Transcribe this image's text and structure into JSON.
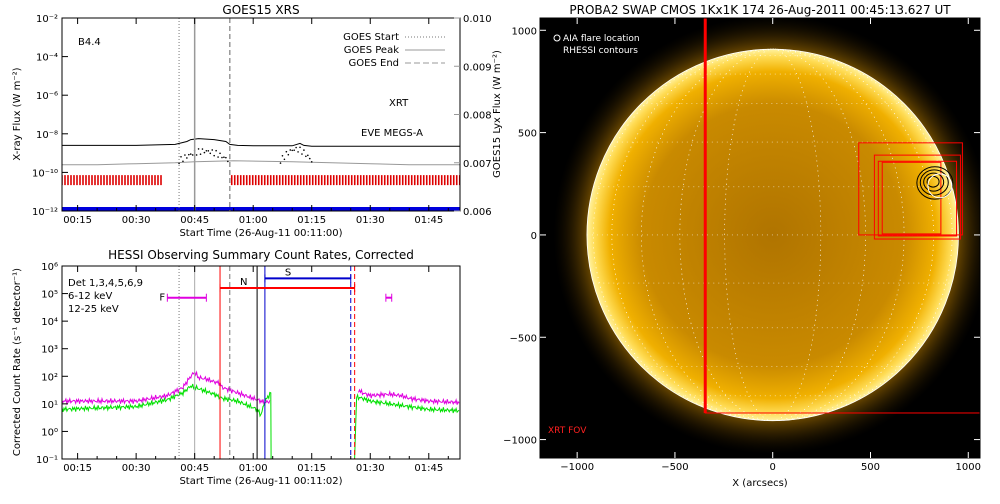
{
  "chart_data": [
    {
      "id": "goes",
      "type": "line",
      "title": "GOES15 XRS",
      "xlabel": "Start Time (26-Aug-11 00:11:00)",
      "ylabel": "X-ray Flux (W m⁻²)",
      "y2label": "GOES15 Lyx Flux (W m⁻²)",
      "x_tick_labels": [
        "00:15",
        "00:30",
        "00:45",
        "01:00",
        "01:15",
        "01:30",
        "01:45"
      ],
      "x_tick_minutes": [
        15,
        30,
        45,
        60,
        75,
        90,
        105
      ],
      "xlim_minutes": [
        11,
        113
      ],
      "ylim_log10": [
        -12,
        -2
      ],
      "y_tick_exponents": [
        -12,
        -10,
        -8,
        -6,
        -4,
        -2
      ],
      "y2lim": [
        0.006,
        0.01
      ],
      "y2_ticks": [
        "0.006",
        "0.007",
        "0.008",
        "0.009",
        "0.010"
      ],
      "class_label": "B4.4",
      "legend": {
        "position": "top-right",
        "entries": [
          {
            "label": "GOES Start",
            "style": "dotted"
          },
          {
            "label": "GOES Peak",
            "style": "solid"
          },
          {
            "label": "GOES End",
            "style": "dashed"
          }
        ]
      },
      "event_lines_minutes": {
        "start": 41,
        "peak": 45,
        "end": 54
      },
      "annotations": [
        {
          "text": "XRT",
          "color": "#cc0000"
        },
        {
          "text": "EVE MEGS-A",
          "color": "#0000cc"
        }
      ],
      "series": [
        {
          "color": "#000000",
          "x": [
            11,
            30,
            40,
            43,
            44,
            46,
            50,
            53,
            54,
            56,
            60,
            70,
            72,
            73,
            75,
            80,
            90,
            100,
            113
          ],
          "y_log10": [
            -8.6,
            -8.6,
            -8.55,
            -8.4,
            -8.3,
            -8.25,
            -8.3,
            -8.4,
            -8.55,
            -8.6,
            -8.62,
            -8.62,
            -8.5,
            -8.6,
            -8.65,
            -8.65,
            -8.65,
            -8.65,
            -8.65
          ]
        },
        {
          "color": "#999999",
          "x": [
            11,
            20,
            30,
            40,
            45,
            55,
            70,
            80,
            90,
            100,
            113
          ],
          "y_log10": [
            -9.6,
            -9.6,
            -9.55,
            -9.5,
            -9.45,
            -9.4,
            -9.45,
            -9.5,
            -9.55,
            -9.6,
            -9.6
          ]
        }
      ],
      "dotted_bursts": [
        {
          "x": [
            41,
            54
          ],
          "y_log10": [
            -9.4,
            -8.9
          ]
        },
        {
          "x": [
            67,
            75
          ],
          "y_log10": [
            -9.4,
            -8.8
          ]
        }
      ],
      "xrt_intervals_minutes": [
        [
          11,
          36.5
        ],
        [
          54.5,
          113
        ]
      ],
      "xrt_y_log10": -10.4,
      "eve_y_log10": -12
    },
    {
      "id": "hessi",
      "type": "line",
      "title": "HESSI Observing Summary Count Rates, Corrected",
      "xlabel": "Start Time (26-Aug-11 00:11:02)",
      "ylabel": "Corrected Count Rate (s⁻¹ detector⁻¹)",
      "x_tick_labels": [
        "00:15",
        "00:30",
        "00:45",
        "01:00",
        "01:15",
        "01:30",
        "01:45"
      ],
      "x_tick_minutes": [
        15,
        30,
        45,
        60,
        75,
        90,
        105
      ],
      "xlim_minutes": [
        11,
        113
      ],
      "ylim_log10": [
        -1,
        6
      ],
      "y_tick_exponents": [
        -1,
        0,
        1,
        2,
        3,
        4,
        5,
        6
      ],
      "legend": {
        "position": "top-left",
        "entries": [
          {
            "label": "Det 1,3,4,5,6,9",
            "color": "#000000"
          },
          {
            "label": "6-12 keV",
            "color": "#e000e0"
          },
          {
            "label": "12-25 keV",
            "color": "#00e000"
          }
        ]
      },
      "series": [
        {
          "name": "6-12 keV",
          "color": "#e000e0",
          "x": [
            11,
            20,
            30,
            38,
            42,
            44,
            45,
            46,
            48,
            50,
            51.5,
            52,
            61,
            63,
            64.5,
            64.6,
            86,
            87,
            88,
            90,
            95,
            98,
            100,
            105,
            113
          ],
          "y_log10": [
            1.1,
            1.1,
            1.1,
            1.3,
            1.6,
            2.0,
            2.15,
            1.95,
            1.9,
            1.8,
            1.75,
            1.6,
            1.15,
            1.05,
            1.1,
            null,
            null,
            1.5,
            1.4,
            1.3,
            1.35,
            1.3,
            1.2,
            1.1,
            1.05
          ]
        },
        {
          "name": "12-25 keV",
          "color": "#00e000",
          "x": [
            11,
            20,
            30,
            38,
            42,
            44,
            46,
            48,
            50,
            52,
            56,
            61,
            62,
            63,
            64.5,
            64.6,
            86,
            86.5,
            88,
            90,
            95,
            100,
            105,
            113
          ],
          "y_log10": [
            0.8,
            0.85,
            0.9,
            1.15,
            1.4,
            1.65,
            1.55,
            1.45,
            1.35,
            1.2,
            1.1,
            0.8,
            0.6,
            1.1,
            1.4,
            -1,
            -1,
            1.25,
            1.2,
            1.1,
            1.0,
            0.9,
            0.8,
            0.75
          ]
        }
      ],
      "lines_minutes": [
        {
          "x": 41,
          "color": "#777777",
          "style": "dotted"
        },
        {
          "x": 45,
          "color": "#aaaaaa",
          "style": "solid"
        },
        {
          "x": 54,
          "color": "#777777",
          "style": "dashed"
        },
        {
          "x": 51.5,
          "color": "#ff0000",
          "style": "solid"
        },
        {
          "x": 61,
          "color": "#000000",
          "style": "solid"
        },
        {
          "x": 63,
          "color": "#0000cc",
          "style": "solid"
        },
        {
          "x": 85,
          "color": "#0000cc",
          "style": "dashed"
        },
        {
          "x": 86,
          "color": "#ff0000",
          "style": "dashed"
        }
      ],
      "flag_bars": [
        {
          "label": "F",
          "color": "#e000e0",
          "x0": 38,
          "x1": 48,
          "y_log10": 4.85
        },
        {
          "label": "N",
          "color": "#ff0000",
          "x0": 51.5,
          "x1": 86,
          "y_log10": 5.2
        },
        {
          "label": "S",
          "color": "#0000cc",
          "x0": 63,
          "x1": 85,
          "y_log10": 5.55
        },
        {
          "label": "",
          "color": "#e000e0",
          "x0": 94,
          "x1": 95.5,
          "y_log10": 4.85
        }
      ]
    },
    {
      "id": "swap",
      "type": "image",
      "title": "PROBA2 SWAP CMOS 1Kx1K 174 26-Aug-2011 00:45:13.627 UT",
      "xlabel": "X (arcsecs)",
      "x_ticks": [
        -1000,
        -500,
        0,
        500,
        1000
      ],
      "y_ticks": [
        -1000,
        -500,
        0,
        500,
        1000
      ],
      "xlim": [
        -1190,
        1060
      ],
      "ylim": [
        -1090,
        1060
      ],
      "solar_radius_arcsec": 950,
      "legend": {
        "position": "top-left",
        "entries": [
          "AIA flare location",
          "RHESSI contours"
        ]
      },
      "fov_label": "XRT FOV",
      "xrt_fov": [
        -345,
        -870,
        1060,
        1060
      ],
      "boxes": [
        [
          440,
          0,
          970,
          450
        ],
        [
          520,
          -20,
          960,
          390
        ],
        [
          540,
          -5,
          940,
          360
        ],
        [
          560,
          5,
          860,
          355
        ]
      ],
      "flare_location": [
        855,
        240
      ],
      "rhessi_center": [
        820,
        260
      ]
    }
  ]
}
